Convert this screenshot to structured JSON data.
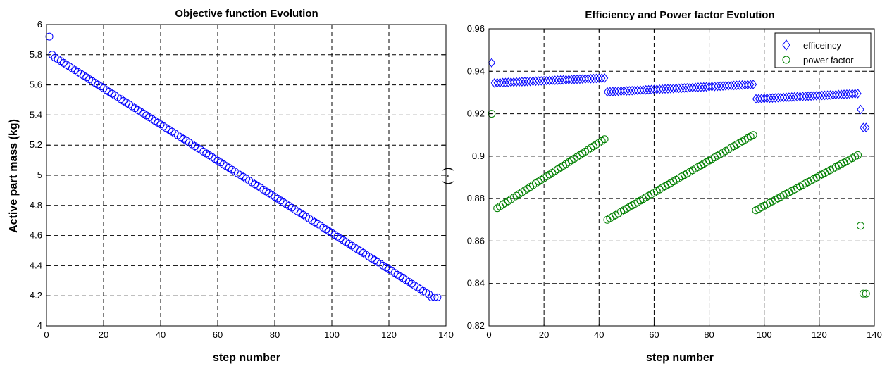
{
  "chart_data": [
    {
      "type": "scatter",
      "title": "Objective function Evolution",
      "xlabel": "step number",
      "ylabel": "Active part mass (kg)",
      "xlim": [
        0,
        140
      ],
      "ylim": [
        4,
        6
      ],
      "xticks": [
        "0",
        "20",
        "40",
        "60",
        "80",
        "100",
        "120",
        "140"
      ],
      "yticks": [
        "4",
        "4.2",
        "4.4",
        "4.6",
        "4.8",
        "5",
        "5.2",
        "5.4",
        "5.6",
        "5.8",
        "6"
      ],
      "grid": true,
      "series": [
        {
          "marker": "circle",
          "color": "#0000ff",
          "x": [
            1,
            2,
            3,
            134,
            135,
            136,
            137
          ],
          "y": [
            5.92,
            5.8,
            5.78,
            4.21,
            4.19,
            4.19,
            4.19
          ]
        }
      ],
      "trend": {
        "x_start": 4,
        "y_start": 5.77,
        "x_end": 133,
        "y_end": 4.22,
        "step": 1
      }
    },
    {
      "type": "scatter",
      "title": "Efficiency and Power factor Evolution",
      "xlabel": "step number",
      "ylabel": "( - )",
      "xlim": [
        0,
        140
      ],
      "ylim": [
        0.82,
        0.96
      ],
      "xticks": [
        "0",
        "20",
        "40",
        "60",
        "80",
        "100",
        "120",
        "140"
      ],
      "yticks": [
        "0.82",
        "0.84",
        "0.86",
        "0.88",
        "0.9",
        "0.92",
        "0.94",
        "0.96"
      ],
      "grid": true,
      "legend_position": "top-right",
      "series": [
        {
          "name": "efficeincy",
          "marker": "diamond",
          "color": "#0000ff",
          "points": [
            [
              1,
              0.944
            ],
            [
              135,
              0.922
            ],
            [
              136,
              0.9135
            ],
            [
              137,
              0.9135
            ]
          ],
          "segments": [
            {
              "x_start": 2,
              "x_end": 42,
              "y_start": 0.9345,
              "y_end": 0.9368
            },
            {
              "x_start": 43,
              "x_end": 96,
              "y_start": 0.9303,
              "y_end": 0.9338
            },
            {
              "x_start": 97,
              "x_end": 134,
              "y_start": 0.927,
              "y_end": 0.9295
            }
          ]
        },
        {
          "name": "power factor",
          "marker": "circle",
          "color": "#008000",
          "points": [
            [
              1,
              0.92
            ],
            [
              135,
              0.8672
            ],
            [
              136,
              0.8352
            ],
            [
              137,
              0.8352
            ]
          ],
          "segments": [
            {
              "x_start": 3,
              "x_end": 42,
              "y_start": 0.8755,
              "y_end": 0.908
            },
            {
              "x_start": 43,
              "x_end": 96,
              "y_start": 0.87,
              "y_end": 0.91
            },
            {
              "x_start": 97,
              "x_end": 134,
              "y_start": 0.8745,
              "y_end": 0.9005
            }
          ]
        }
      ]
    }
  ]
}
